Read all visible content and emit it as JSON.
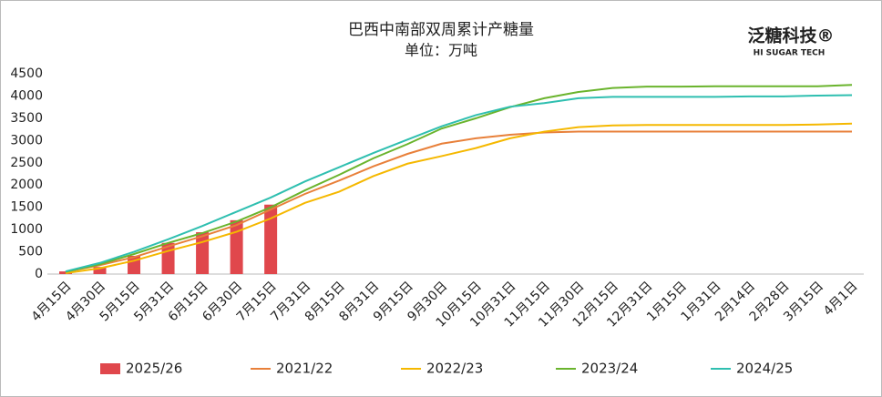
{
  "chart_data": {
    "type": "combo",
    "title": "巴西中南部双周累计产糖量",
    "subtitle": "单位：万吨",
    "brand": "泛糖科技®",
    "brand_sub": "HI SUGAR TECH",
    "categories": [
      "4月15日",
      "4月30日",
      "5月15日",
      "5月31日",
      "6月15日",
      "6月30日",
      "7月15日",
      "7月31日",
      "8月15日",
      "8月31日",
      "9月15日",
      "9月30日",
      "10月15日",
      "10月31日",
      "11月15日",
      "11月30日",
      "12月15日",
      "12月31日",
      "1月15日",
      "1月31日",
      "2月14日",
      "2月28日",
      "3月15日",
      "4月1日"
    ],
    "series": [
      {
        "name": "2025/26",
        "type": "bar",
        "color": "#e0474c",
        "values": [
          60,
          160,
          410,
          700,
          940,
          1210,
          1560,
          null,
          null,
          null,
          null,
          null,
          null,
          null,
          null,
          null,
          null,
          null,
          null,
          null,
          null,
          null,
          null,
          null
        ]
      },
      {
        "name": "2021/22",
        "type": "line",
        "color": "#e8803a",
        "values": [
          50,
          200,
          380,
          620,
          850,
          1100,
          1450,
          1800,
          2100,
          2420,
          2700,
          2930,
          3050,
          3130,
          3180,
          3200,
          3200,
          3200,
          3200,
          3200,
          3200,
          3200,
          3200,
          3200
        ]
      },
      {
        "name": "2022/23",
        "type": "line",
        "color": "#f5b800",
        "values": [
          20,
          130,
          300,
          520,
          720,
          950,
          1250,
          1600,
          1850,
          2200,
          2480,
          2650,
          2830,
          3050,
          3200,
          3300,
          3340,
          3350,
          3350,
          3350,
          3350,
          3350,
          3360,
          3380
        ]
      },
      {
        "name": "2023/24",
        "type": "line",
        "color": "#6ab42d",
        "values": [
          50,
          220,
          450,
          700,
          920,
          1180,
          1500,
          1880,
          2230,
          2600,
          2920,
          3270,
          3500,
          3750,
          3950,
          4090,
          4180,
          4210,
          4210,
          4220,
          4220,
          4220,
          4220,
          4250
        ]
      },
      {
        "name": "2024/25",
        "type": "line",
        "color": "#2fbfb0",
        "values": [
          60,
          250,
          500,
          780,
          1080,
          1400,
          1720,
          2080,
          2400,
          2720,
          3020,
          3320,
          3570,
          3760,
          3840,
          3950,
          3980,
          3980,
          3980,
          3980,
          3990,
          3990,
          4010,
          4020
        ]
      }
    ],
    "ylim": [
      0,
      4500
    ],
    "yticks": [
      0,
      500,
      1000,
      1500,
      2000,
      2500,
      3000,
      3500,
      4000,
      4500
    ],
    "grid": false,
    "legend": "bottom"
  }
}
